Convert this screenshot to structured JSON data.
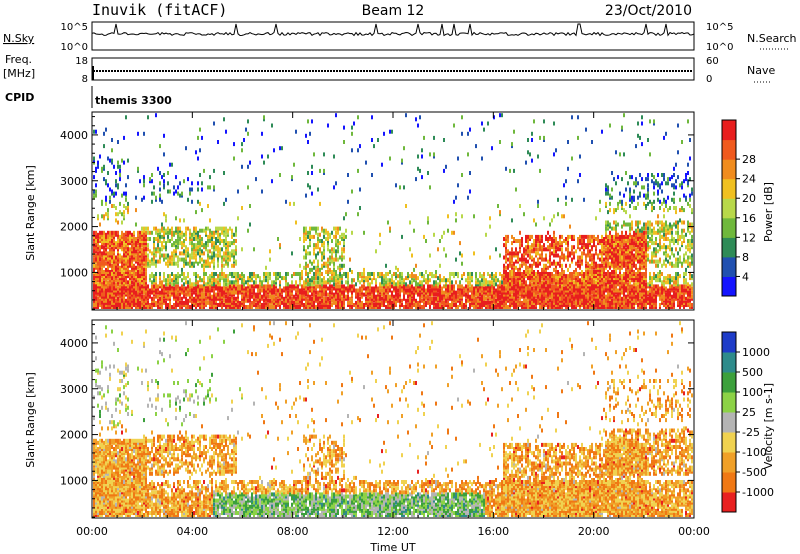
{
  "header": {
    "station": "Inuvik (fitACF)",
    "beam": "Beam 12",
    "date": "23/Oct/2010"
  },
  "status_panels": {
    "nsky_label": "N.Sky",
    "nsky_tick_top": "10^5",
    "nsky_tick_bottom": "10^0",
    "nsearch_label": "N.Search",
    "nsearch_tick_top": "10^5",
    "nsearch_tick_bottom": "10^0",
    "freq_label": "Freq.",
    "freq_unit": "[MHz]",
    "freq_tick_top": "18",
    "freq_tick_bottom": "8",
    "nave_label": "Nave",
    "nave_tick_top": "60",
    "nave_tick_bottom": "0",
    "cpid_label": "CPID",
    "cpid_value": "themis 3300"
  },
  "chart_data": [
    {
      "type": "heatmap",
      "name": "power-panel",
      "xlabel": "Time UT",
      "ylabel": "Slant Range [km]",
      "x_ticks": [
        "00:00",
        "04:00",
        "08:00",
        "12:00",
        "16:00",
        "20:00",
        "00:00"
      ],
      "y_ticks": [
        "1000",
        "2000",
        "3000",
        "4000"
      ],
      "ylim": [
        180,
        4500
      ],
      "colorbar_label": "Power [dB]",
      "colorbar_ticks": [
        "4",
        "8",
        "12",
        "16",
        "20",
        "24",
        "28"
      ],
      "colorbar_colors": [
        "#1414ff",
        "#2050b0",
        "#2e8b57",
        "#6fb83c",
        "#b8d84a",
        "#f0c020",
        "#f08c1e",
        "#f05a1e",
        "#e81e1e"
      ]
    },
    {
      "type": "heatmap",
      "name": "velocity-panel",
      "xlabel": "Time UT",
      "ylabel": "Slant Range [km]",
      "x_ticks": [
        "00:00",
        "04:00",
        "08:00",
        "12:00",
        "16:00",
        "20:00",
        "00:00"
      ],
      "y_ticks": [
        "1000",
        "2000",
        "3000",
        "4000"
      ],
      "ylim": [
        180,
        4500
      ],
      "colorbar_label": "Velocity [m s-1]",
      "colorbar_ticks": [
        "1000",
        "500",
        "100",
        "25",
        "-25",
        "-100",
        "-500",
        "-1000"
      ],
      "colorbar_colors": [
        "#1e3cc8",
        "#2e8b8b",
        "#3ca03c",
        "#8cd246",
        "#b4b4b4",
        "#f0d250",
        "#f0a028",
        "#f07814",
        "#e82020"
      ]
    }
  ]
}
